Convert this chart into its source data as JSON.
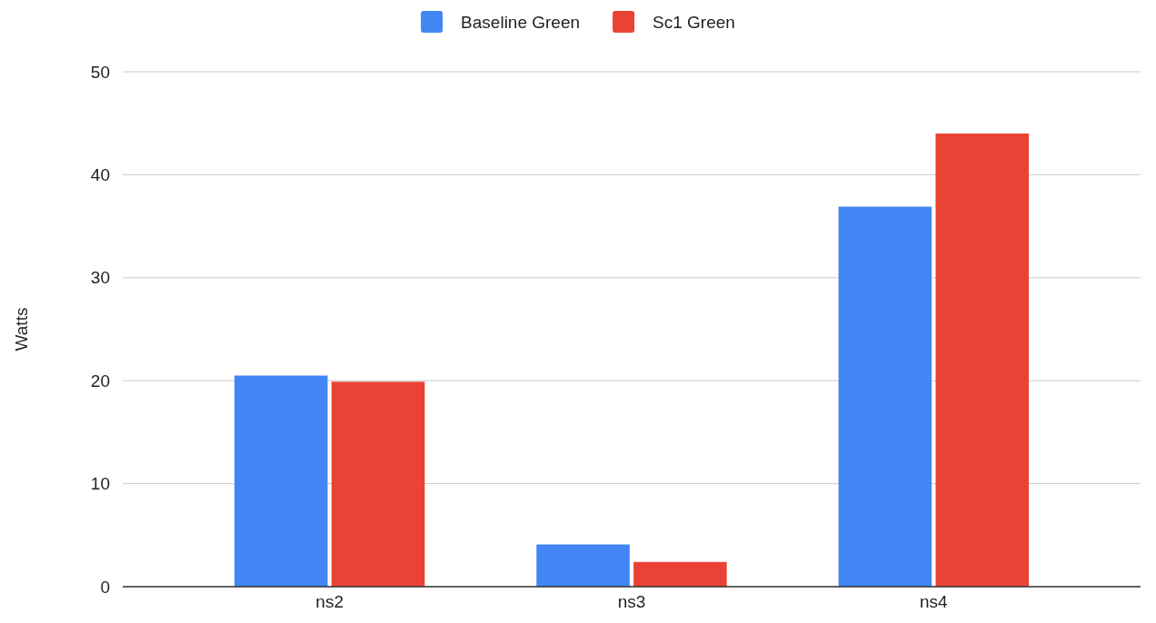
{
  "chart_data": {
    "type": "bar",
    "ylabel": "Watts",
    "categories": [
      "ns2",
      "ns3",
      "ns4"
    ],
    "series": [
      {
        "name": "Baseline Green",
        "color": "#4285f4",
        "values": [
          20.5,
          4.1,
          36.9
        ]
      },
      {
        "name": "Sc1 Green",
        "color": "#ea4335",
        "values": [
          19.9,
          2.4,
          44.0
        ]
      }
    ],
    "ylim": [
      0,
      50
    ],
    "yticks": [
      0,
      10,
      20,
      30,
      40,
      50
    ],
    "grid": "y",
    "legend": "top"
  }
}
